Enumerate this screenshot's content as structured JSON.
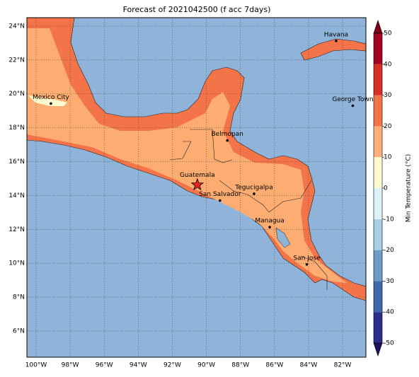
{
  "title": "Forecast of 2021042500 (f acc 7days)",
  "map": {
    "lonlim": [
      -100.54,
      -80.63
    ],
    "latlim": [
      4.45,
      24.5
    ],
    "lon_ticks": [
      {
        "value": -100,
        "label": "100°W"
      },
      {
        "value": -98,
        "label": "98°W"
      },
      {
        "value": -96,
        "label": "96°W"
      },
      {
        "value": -94,
        "label": "94°W"
      },
      {
        "value": -92,
        "label": "92°W"
      },
      {
        "value": -90,
        "label": "90°W"
      },
      {
        "value": -88,
        "label": "88°W"
      },
      {
        "value": -86,
        "label": "86°W"
      },
      {
        "value": -84,
        "label": "84°W"
      },
      {
        "value": -82,
        "label": "82°W"
      }
    ],
    "lat_ticks": [
      {
        "value": 6,
        "label": "6°N"
      },
      {
        "value": 8,
        "label": "8°N"
      },
      {
        "value": 10,
        "label": "10°N"
      },
      {
        "value": 12,
        "label": "12°N"
      },
      {
        "value": 14,
        "label": "14°N"
      },
      {
        "value": 16,
        "label": "16°N"
      },
      {
        "value": 18,
        "label": "18°N"
      },
      {
        "value": 20,
        "label": "20°N"
      },
      {
        "value": 22,
        "label": "22°N"
      },
      {
        "value": 24,
        "label": "24°N"
      }
    ],
    "cities": [
      {
        "name": "Mexico City",
        "lon": -99.13,
        "lat": 19.43
      },
      {
        "name": "Havana",
        "lon": -82.38,
        "lat": 23.13
      },
      {
        "name": "George Town",
        "lon": -81.4,
        "lat": 19.3
      },
      {
        "name": "Belmopan",
        "lon": -88.77,
        "lat": 17.25
      },
      {
        "name": "Guatemala",
        "lon": -90.53,
        "lat": 14.63
      },
      {
        "name": "Tegucigalpa",
        "lon": -87.2,
        "lat": 14.1
      },
      {
        "name": "San Salvador",
        "lon": -89.2,
        "lat": 13.7
      },
      {
        "name": "Managua",
        "lon": -86.28,
        "lat": 12.13
      },
      {
        "name": "San Jose",
        "lon": -84.1,
        "lat": 9.93
      }
    ]
  },
  "colorbar": {
    "label": "Min Temperature (°C)",
    "lim": [
      -50,
      50
    ],
    "ticks": [
      -50,
      -40,
      -30,
      -20,
      -10,
      0,
      10,
      20,
      30,
      40,
      50
    ],
    "colors": [
      "#2b2f8a",
      "#4068aa",
      "#6e9cc9",
      "#a7d0e4",
      "#dff2f7",
      "#fefbd0",
      "#fdb07a",
      "#f4744a",
      "#d73027",
      "#a50026"
    ],
    "extend_colors": [
      "#1b1464",
      "#7a0019"
    ]
  }
}
